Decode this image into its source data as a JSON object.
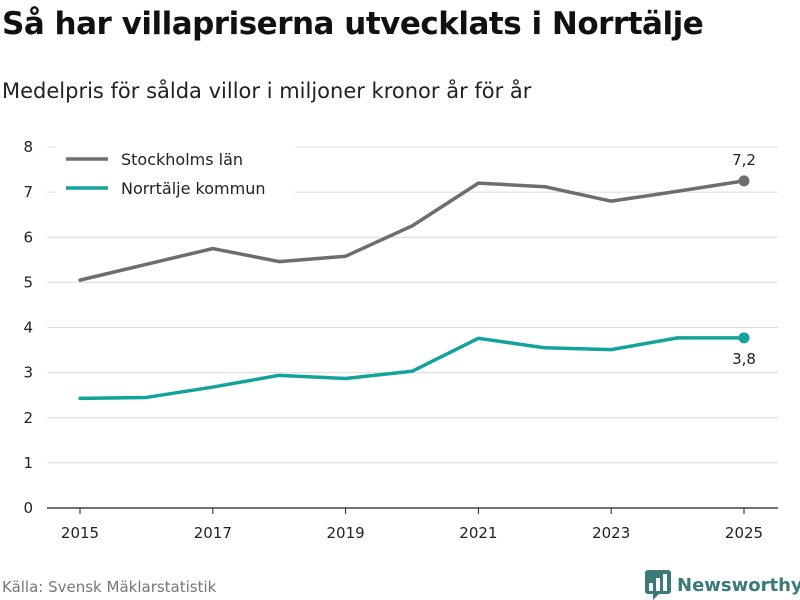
{
  "title": "Så har villapriserna utvecklats i Norrtälje",
  "subtitle": "Medelpris för sålda villor i miljoner kronor år för år",
  "source": "Källa: Svensk Mäklarstatistik",
  "brand": {
    "name": "Newsworthy",
    "icon": "newsworthy-logo-icon",
    "color": "#3a7a78"
  },
  "chart_data": {
    "type": "line",
    "title": "Så har villapriserna utvecklats i Norrtälje",
    "subtitle": "Medelpris för sålda villor i miljoner kronor år för år",
    "xlabel": "",
    "ylabel": "",
    "x": [
      2015,
      2016,
      2017,
      2018,
      2019,
      2020,
      2021,
      2022,
      2023,
      2024,
      2025
    ],
    "x_tick_labels": [
      "2015",
      "2017",
      "2019",
      "2021",
      "2023",
      "2025"
    ],
    "y_ticks": [
      "0",
      "1",
      "2",
      "3",
      "4",
      "5",
      "6",
      "7",
      "8"
    ],
    "ylim": [
      0,
      8
    ],
    "grid": true,
    "legend_position": "top-left",
    "series": [
      {
        "name": "Stockholms län",
        "color": "#6d6d6f",
        "values": [
          5.05,
          5.4,
          5.75,
          5.46,
          5.58,
          6.25,
          7.2,
          7.12,
          6.8,
          7.02,
          7.25
        ],
        "end_label": "7,2",
        "end_label_position": "above"
      },
      {
        "name": "Norrtälje kommun",
        "color": "#13a39a",
        "values": [
          2.43,
          2.45,
          2.68,
          2.94,
          2.87,
          3.03,
          3.76,
          3.55,
          3.51,
          3.77,
          3.77
        ],
        "end_label": "3,8",
        "end_label_position": "below"
      }
    ]
  }
}
